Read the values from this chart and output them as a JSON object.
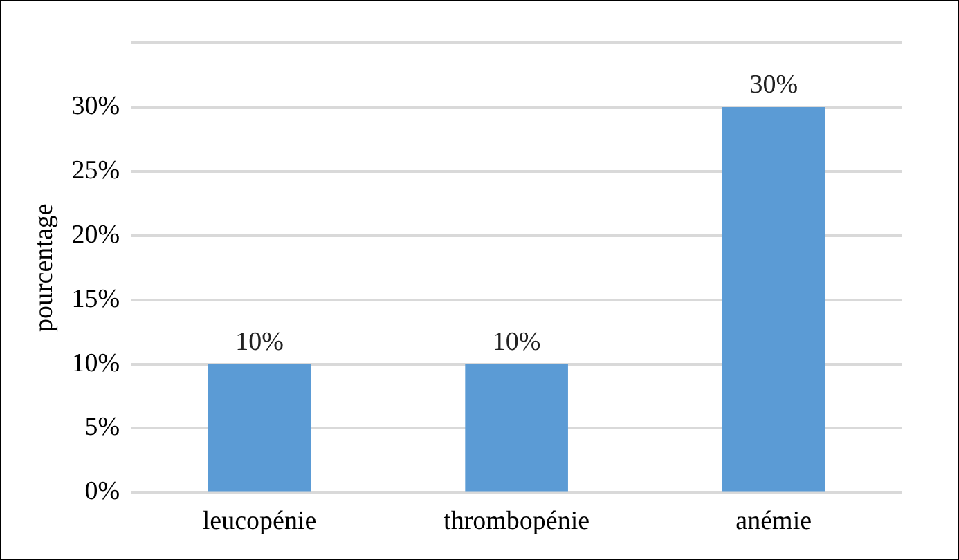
{
  "chart_data": {
    "type": "bar",
    "ylabel": "pourcentage",
    "categories": [
      "leucopénie",
      "thrombopénie",
      "anémie"
    ],
    "values": [
      10,
      10,
      30
    ],
    "color": "#5b9bd5",
    "value_labels": [
      "10%",
      "10%",
      "30%"
    ],
    "ylim": [
      0,
      35
    ],
    "yticks": [
      {
        "value": 0,
        "label": "0%"
      },
      {
        "value": 5,
        "label": "5%"
      },
      {
        "value": 10,
        "label": "10%"
      },
      {
        "value": 15,
        "label": "15%"
      },
      {
        "value": 20,
        "label": "20%"
      },
      {
        "value": 25,
        "label": "25%"
      },
      {
        "value": 30,
        "label": "30%"
      },
      {
        "value": 35,
        "label": null
      }
    ],
    "grid": "y",
    "legend": false
  }
}
